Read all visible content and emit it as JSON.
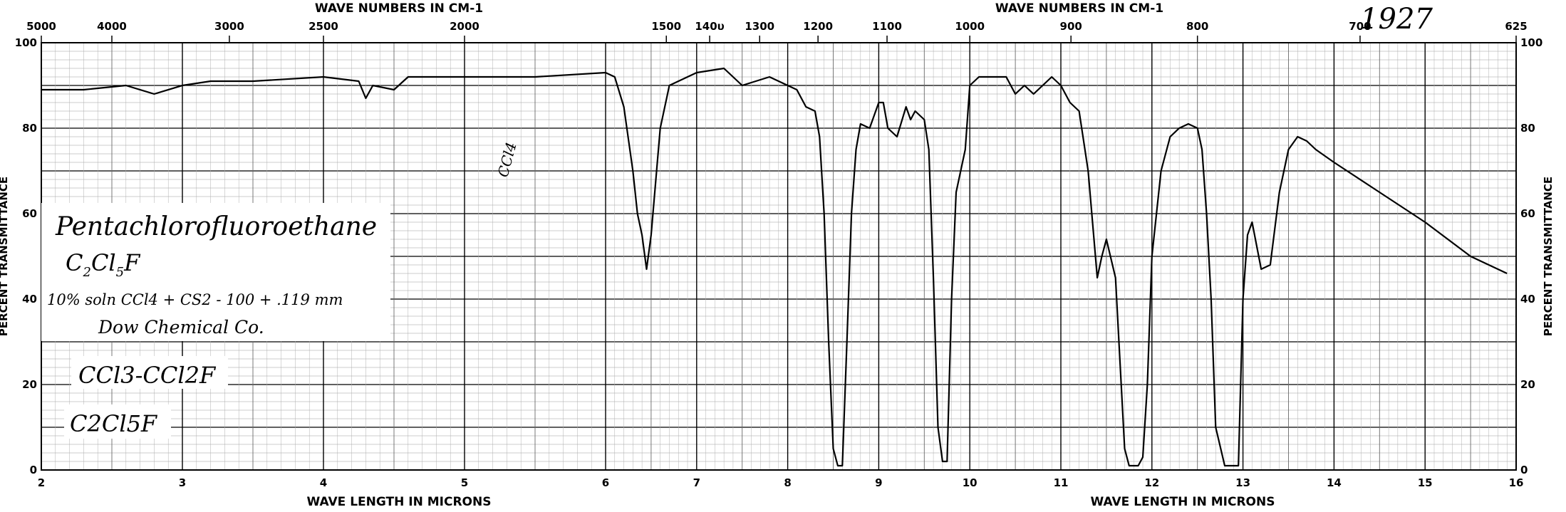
{
  "catalog_number": "1927",
  "chart_data": {
    "type": "line",
    "top_axis_label_left": "WAVE NUMBERS IN CM-1",
    "top_axis_label_right": "WAVE NUMBERS IN CM-1",
    "bottom_axis_label_left": "WAVE LENGTH IN MICRONS",
    "bottom_axis_label_right": "WAVE LENGTH IN MICRONS",
    "ylabel_left": "PERCENT TRANSMITTANCE",
    "ylabel_right": "PERCENT TRANSMITTANCE",
    "xlim": [
      2,
      16
    ],
    "ylim": [
      0,
      100
    ],
    "grid": true,
    "x_ticks": [
      "2",
      "3",
      "4",
      "5",
      "6",
      "7",
      "8",
      "9",
      "10",
      "11",
      "12",
      "13",
      "14",
      "15",
      "16"
    ],
    "y_ticks": [
      "0",
      "20",
      "40",
      "60",
      "80",
      "100"
    ],
    "wavenumber_ticks": [
      {
        "label": "5000",
        "micron": 2.0
      },
      {
        "label": "4000",
        "micron": 2.5
      },
      {
        "label": "3000",
        "micron": 3.333
      },
      {
        "label": "2500",
        "micron": 4.0
      },
      {
        "label": "2000",
        "micron": 5.0
      },
      {
        "label": "1500",
        "micron": 6.667
      },
      {
        "label": "140υ",
        "micron": 7.143
      },
      {
        "label": "1300",
        "micron": 7.692
      },
      {
        "label": "1200",
        "micron": 8.333
      },
      {
        "label": "1100",
        "micron": 9.091
      },
      {
        "label": "1000",
        "micron": 10.0
      },
      {
        "label": "900",
        "micron": 11.111
      },
      {
        "label": "800",
        "micron": 12.5
      },
      {
        "label": "700",
        "micron": 14.286
      },
      {
        "label": "625",
        "micron": 16.0
      }
    ],
    "series": [
      {
        "x": [
          2.0,
          2.3,
          2.6,
          2.8,
          3.0,
          3.2,
          3.5,
          4.0,
          4.25,
          4.3,
          4.35,
          4.5,
          4.6,
          4.7,
          5.0,
          5.5,
          6.0,
          6.1,
          6.2,
          6.3,
          6.35,
          6.4,
          6.45,
          6.5,
          6.6,
          6.7,
          7.0,
          7.3,
          7.5,
          7.8,
          8.0,
          8.1,
          8.2,
          8.3,
          8.35,
          8.4,
          8.45,
          8.5,
          8.55,
          8.6,
          8.65,
          8.7,
          8.75,
          8.8,
          8.9,
          9.0,
          9.05,
          9.1,
          9.2,
          9.3,
          9.35,
          9.4,
          9.5,
          9.55,
          9.6,
          9.65,
          9.7,
          9.75,
          9.8,
          9.85,
          9.9,
          9.95,
          10.0,
          10.1,
          10.2,
          10.4,
          10.5,
          10.6,
          10.7,
          10.9,
          11.0,
          11.1,
          11.2,
          11.3,
          11.4,
          11.45,
          11.5,
          11.6,
          11.65,
          11.7,
          11.75,
          11.8,
          11.85,
          11.9,
          11.95,
          12.0,
          12.1,
          12.2,
          12.3,
          12.4,
          12.5,
          12.55,
          12.6,
          12.65,
          12.7,
          12.8,
          12.85,
          12.9,
          12.95,
          13.0,
          13.05,
          13.1,
          13.2,
          13.3,
          13.4,
          13.5,
          13.6,
          13.7,
          13.8,
          14.0,
          14.5,
          15.0,
          15.5,
          15.9
        ],
        "y": [
          89,
          89,
          90,
          88,
          90,
          91,
          91,
          92,
          91,
          87,
          90,
          89,
          92,
          92,
          92,
          92,
          93,
          92,
          85,
          70,
          60,
          55,
          47,
          55,
          80,
          90,
          93,
          94,
          90,
          92,
          90,
          89,
          85,
          84,
          78,
          60,
          30,
          5,
          1,
          1,
          30,
          60,
          75,
          81,
          80,
          86,
          86,
          80,
          78,
          85,
          82,
          84,
          82,
          75,
          45,
          10,
          2,
          2,
          40,
          65,
          70,
          75,
          90,
          92,
          92,
          92,
          88,
          90,
          88,
          92,
          90,
          86,
          84,
          70,
          45,
          50,
          54,
          45,
          25,
          5,
          1,
          1,
          1,
          3,
          20,
          50,
          70,
          78,
          80,
          81,
          80,
          75,
          60,
          40,
          10,
          1,
          1,
          1,
          1,
          40,
          55,
          58,
          47,
          48,
          65,
          75,
          78,
          77,
          75,
          72,
          65,
          58,
          50,
          46
        ]
      }
    ],
    "annotations": {
      "compound": "Pentachlorofluoroethane",
      "formula_main": "C",
      "formula_sub1": "2",
      "formula_mid": "Cl",
      "formula_sub2": "5",
      "formula_end": "F",
      "conditions": "10% soln CCl4 + CS2 - 100 + .119 mm",
      "source": "Dow Chemical Co.",
      "structure": "CCl3-CCl2F",
      "formula_alt": "C2Cl5F",
      "band_note": "CCl4"
    }
  }
}
